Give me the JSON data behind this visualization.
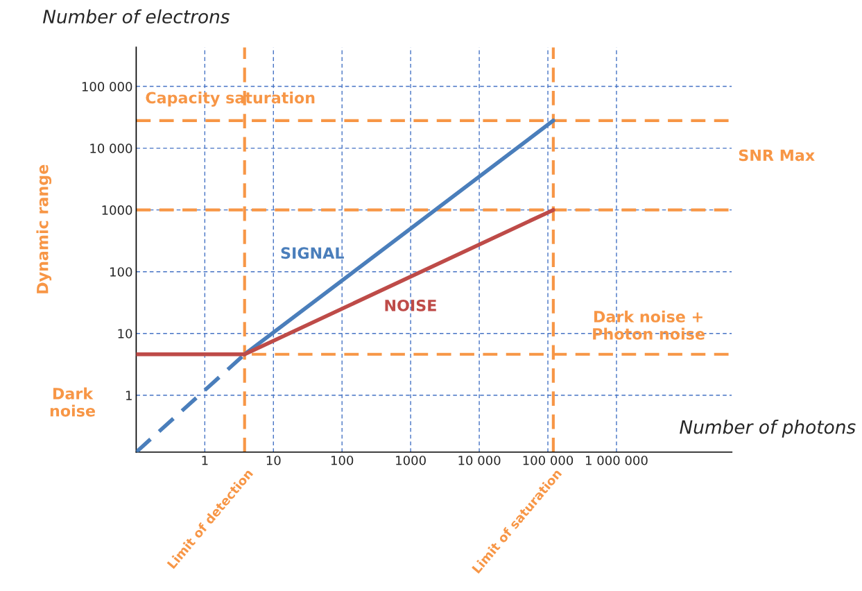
{
  "chart_data": {
    "type": "line",
    "log": "xy",
    "xlabel": "Number of photons",
    "ylabel": "Number of electrons",
    "xlim": [
      0.1,
      48000000
    ],
    "ylim": [
      0.12,
      430000
    ],
    "xticks": [
      1,
      10,
      100,
      1000,
      {
        "value": 10000,
        "label": "10 000"
      },
      {
        "value": 100000,
        "label": "100 000"
      },
      {
        "value": 1000000,
        "label": "1 000 000"
      }
    ],
    "yticks": [
      1,
      10,
      100,
      1000,
      {
        "value": 10000,
        "label": "10 000"
      },
      {
        "value": 100000,
        "label": "100 000"
      }
    ],
    "grid": true,
    "legend": false,
    "series": [
      {
        "color": "#4a7ebb",
        "line_style": "dashed",
        "x": [
          0.1,
          3.8
        ],
        "values": [
          0.12,
          4.6
        ]
      },
      {
        "name": "SIGNAL",
        "color": "#4a7ebb",
        "line_style": "solid",
        "x": [
          3.8,
          120000
        ],
        "values": [
          4.6,
          28000
        ]
      },
      {
        "name": "NOISE",
        "color": "#be4b48",
        "line_style": "solid",
        "x": [
          0.1,
          3.8,
          120000
        ],
        "values": [
          4.6,
          4.6,
          1000
        ]
      }
    ],
    "ref_lines": [
      {
        "axis": "y",
        "value": 28000,
        "color": "#f79646",
        "line_style": "dashed"
      },
      {
        "axis": "y",
        "value": 1000,
        "color": "#f79646",
        "line_style": "dashed"
      },
      {
        "axis": "y",
        "value": 4.6,
        "color": "#f79646",
        "line_style": "dashed"
      },
      {
        "axis": "x",
        "value": 3.8,
        "label": "Limit of detection",
        "color": "#f79646",
        "line_style": "dashed"
      },
      {
        "axis": "x",
        "value": 120000,
        "label": "Limit of saturation",
        "color": "#f79646",
        "line_style": "dashed"
      }
    ],
    "annotations": [
      "Capacity saturation",
      "SNR Max",
      "Dynamic range",
      "Dark\nnoise",
      "Dark noise +\nPhoton noise"
    ]
  }
}
